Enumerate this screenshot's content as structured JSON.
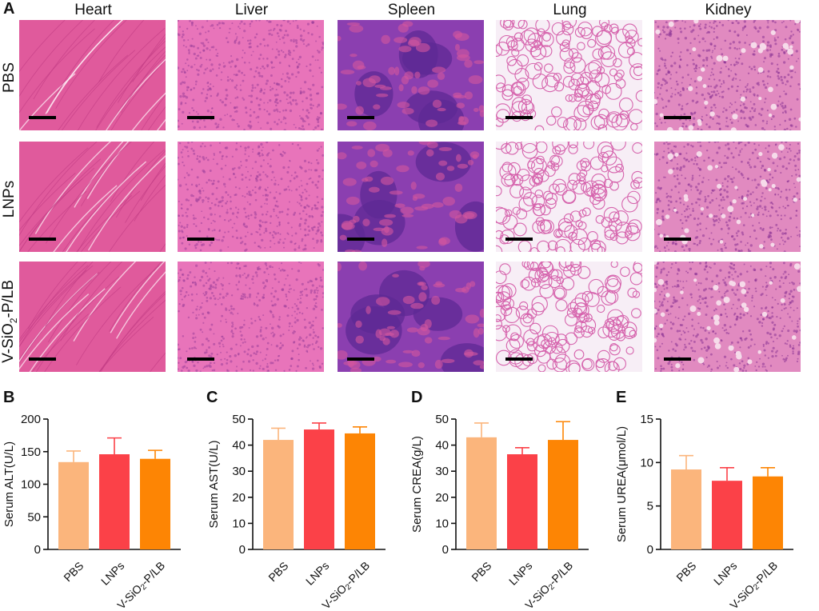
{
  "panel_letters": [
    "A",
    "B",
    "C",
    "D",
    "E"
  ],
  "histology": {
    "columns": [
      "Heart",
      "Liver",
      "Spleen",
      "Lung",
      "Kidney"
    ],
    "rows": [
      "PBS",
      "LNPs",
      "V-SiO",
      "2",
      "-P/LB"
    ],
    "tissue_colors": {
      "Heart": "#e05a9c",
      "Liver": "#e874ba",
      "Spleen": "#8b3fb0",
      "Lung": "#f7eef6",
      "Kidney": "#e18ac0"
    }
  },
  "colors": {
    "PBS": "#fbb57c",
    "LNPs": "#fb4148",
    "V-SiO2-P/LB": "#fd8504"
  },
  "chart_data": [
    {
      "type": "bar",
      "panel": "B",
      "categories": [
        "PBS",
        "LNPs",
        "V-SiO2-P/LB"
      ],
      "values": [
        134,
        146,
        139
      ],
      "errors": [
        17,
        25,
        13
      ],
      "ylabel": "Serum ALT(U/L)",
      "ylim": [
        0,
        200
      ],
      "yticks": [
        0,
        50,
        100,
        150,
        200
      ]
    },
    {
      "type": "bar",
      "panel": "C",
      "categories": [
        "PBS",
        "LNPs",
        "V-SiO2-P/LB"
      ],
      "values": [
        42,
        46,
        44.5
      ],
      "errors": [
        4.5,
        2.5,
        2.5
      ],
      "ylabel": "Serum AST(U/L)",
      "ylim": [
        0,
        50
      ],
      "yticks": [
        0,
        10,
        20,
        30,
        40,
        50
      ]
    },
    {
      "type": "bar",
      "panel": "D",
      "categories": [
        "PBS",
        "LNPs",
        "V-SiO2-P/LB"
      ],
      "values": [
        43,
        36.5,
        42
      ],
      "errors": [
        5.5,
        2.5,
        7
      ],
      "ylabel": "Serum CREA(g/L)",
      "ylim": [
        0,
        50
      ],
      "yticks": [
        0,
        10,
        20,
        30,
        40,
        50
      ]
    },
    {
      "type": "bar",
      "panel": "E",
      "categories": [
        "PBS",
        "LNPs",
        "V-SiO2-P/LB"
      ],
      "values": [
        9.2,
        7.9,
        8.4
      ],
      "errors": [
        1.6,
        1.5,
        1.0
      ],
      "ylabel": "Serum UREA(μmol/L)",
      "ylim": [
        0,
        15
      ],
      "yticks": [
        0,
        5,
        10,
        15
      ]
    }
  ]
}
